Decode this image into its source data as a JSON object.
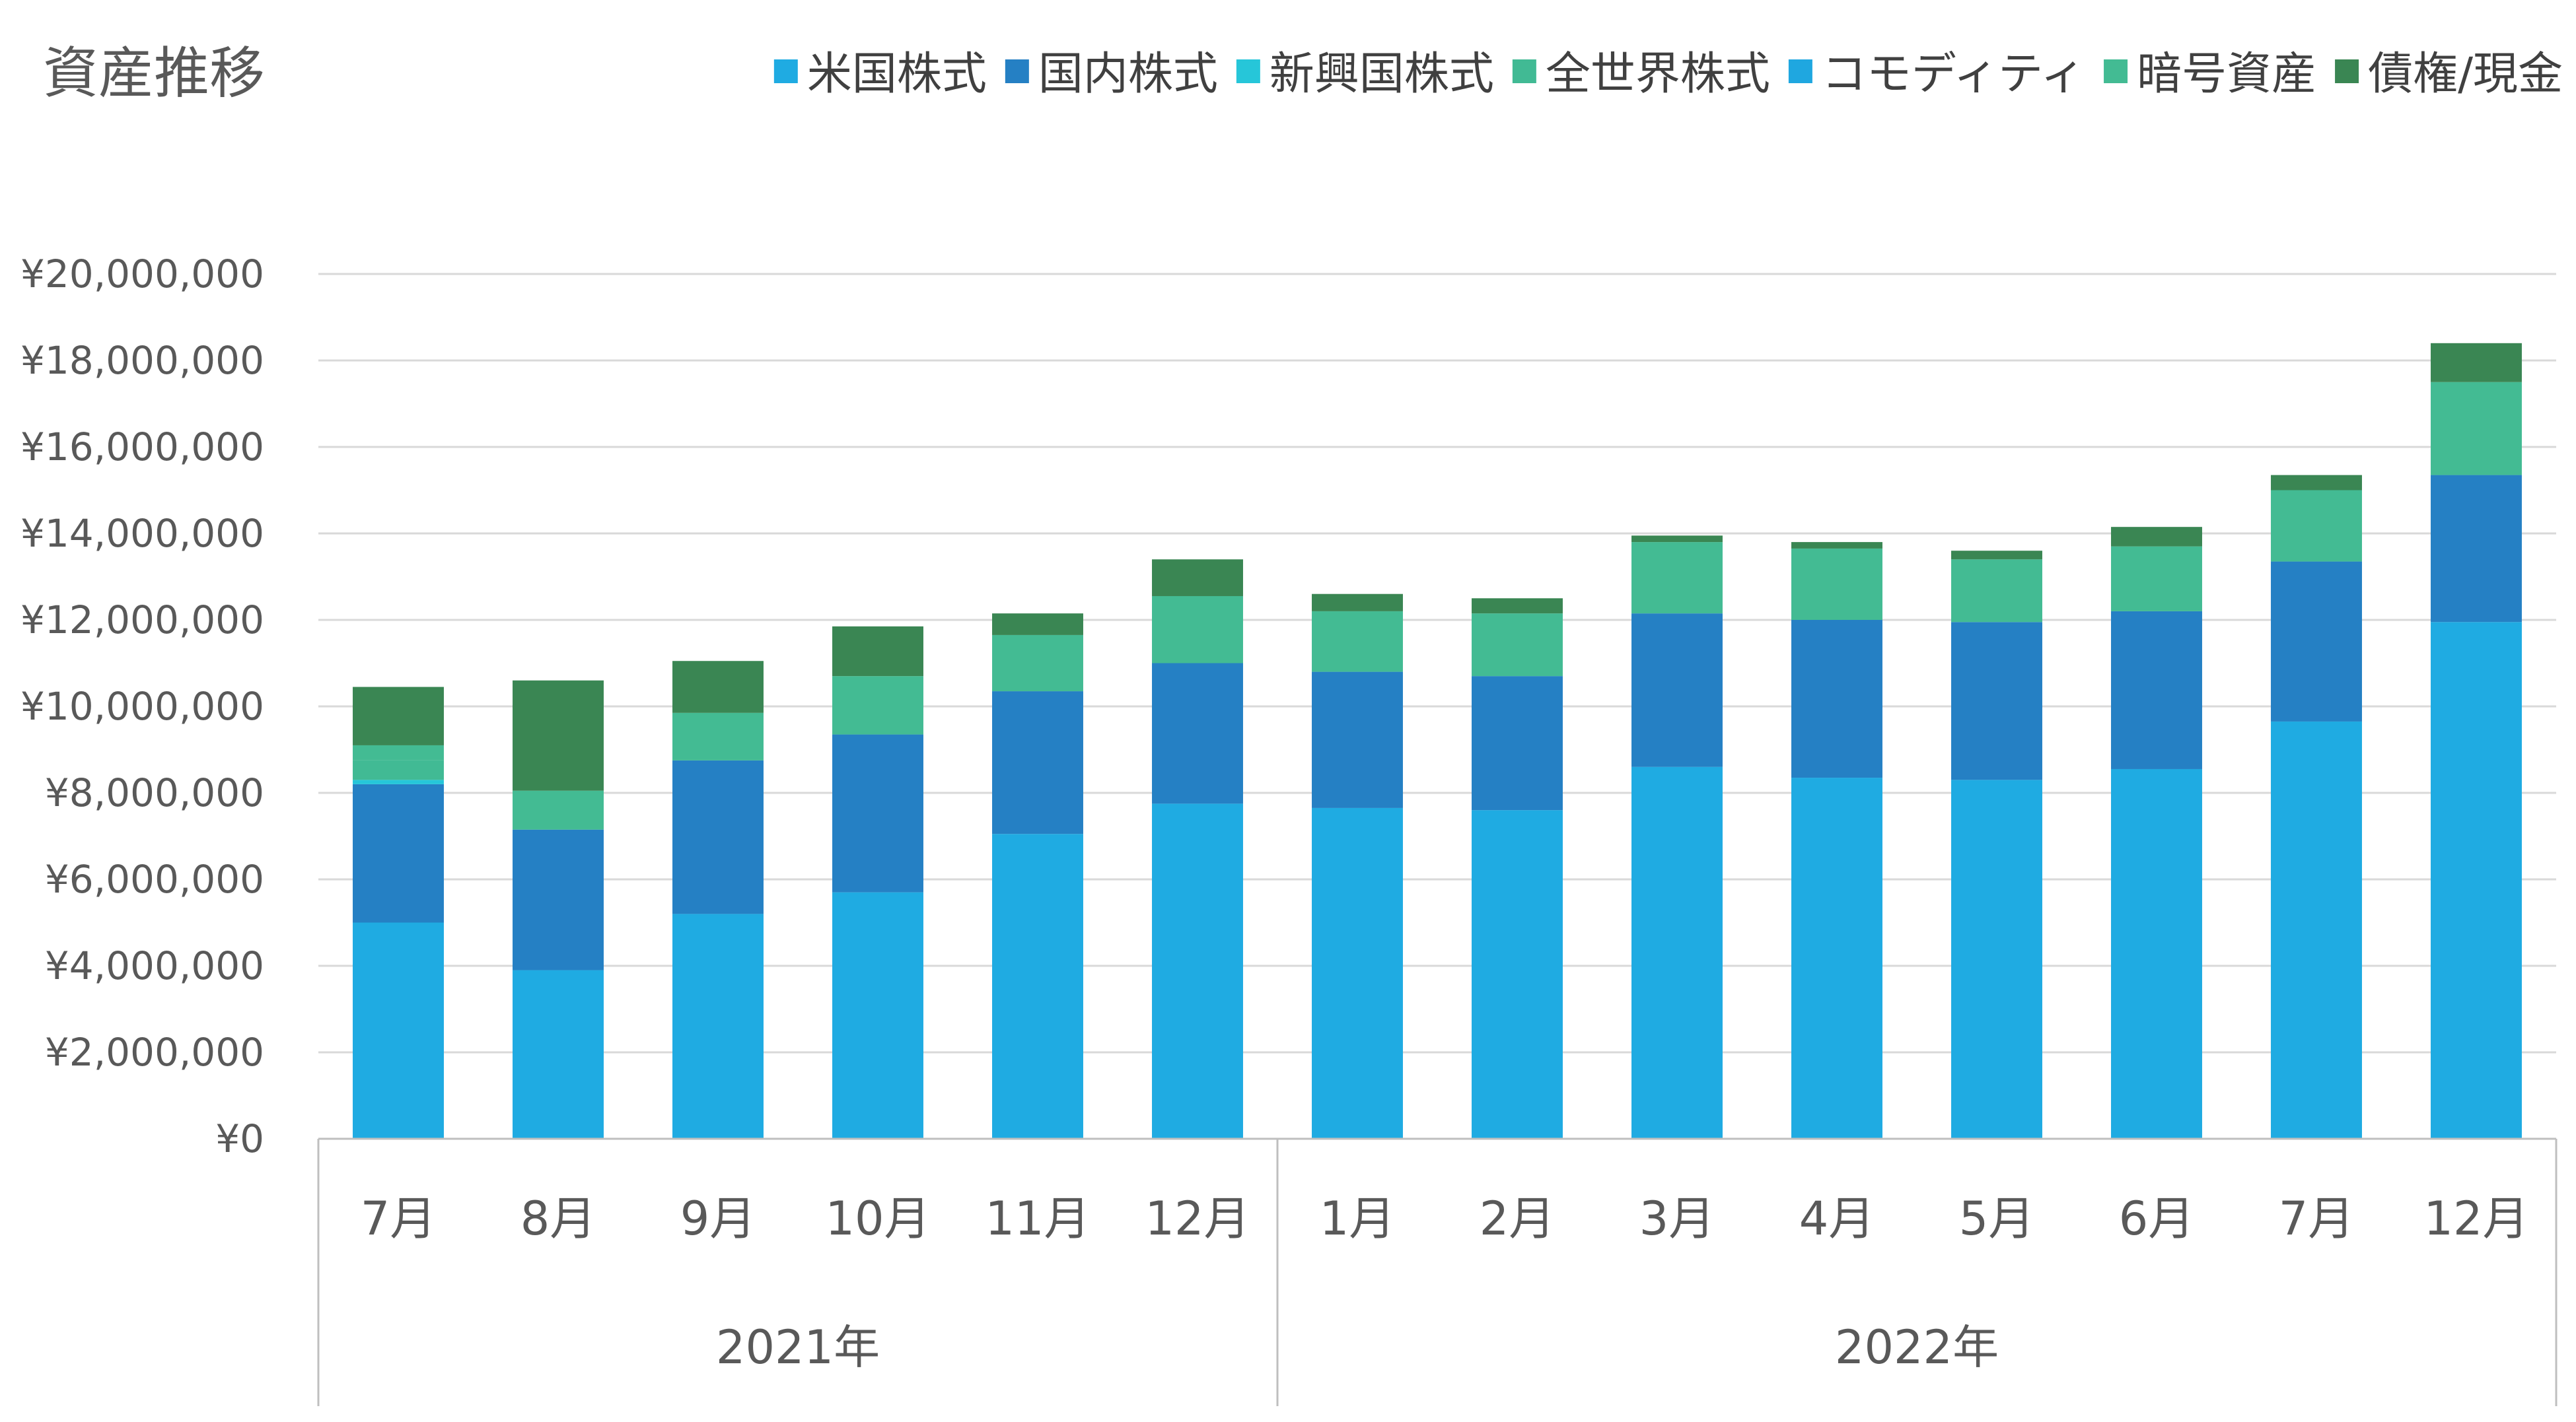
{
  "chart_data": {
    "type": "bar",
    "stacked": true,
    "title": "資産推移",
    "legend_position": "top-right",
    "grid": true,
    "ylim": [
      0,
      20000000
    ],
    "yticks": [
      0,
      2000000,
      4000000,
      6000000,
      8000000,
      10000000,
      12000000,
      14000000,
      16000000,
      18000000,
      20000000
    ],
    "ytick_labels": [
      "¥0",
      "¥2,000,000",
      "¥4,000,000",
      "¥6,000,000",
      "¥8,000,000",
      "¥10,000,000",
      "¥12,000,000",
      "¥14,000,000",
      "¥16,000,000",
      "¥18,000,000",
      "¥20,000,000"
    ],
    "categories": [
      "7月",
      "8月",
      "9月",
      "10月",
      "11月",
      "12月",
      "1月",
      "2月",
      "3月",
      "4月",
      "5月",
      "6月",
      "7月",
      "12月"
    ],
    "groups": [
      {
        "label": "2021年",
        "count": 6
      },
      {
        "label": "2022年",
        "count": 8
      }
    ],
    "series": [
      {
        "name": "米国株式",
        "color": "#1FABE2",
        "values": [
          5000000,
          3900000,
          5200000,
          5700000,
          7050000,
          7750000,
          7650000,
          7600000,
          8600000,
          8350000,
          8300000,
          8550000,
          9650000,
          11950000
        ]
      },
      {
        "name": "国内株式",
        "color": "#2580C4",
        "values": [
          3200000,
          3250000,
          3550000,
          3650000,
          3300000,
          3250000,
          3150000,
          3100000,
          3550000,
          3650000,
          3650000,
          3650000,
          3700000,
          3400000
        ]
      },
      {
        "name": "新興国株式",
        "color": "#26C6D9",
        "values": [
          100000,
          0,
          0,
          0,
          0,
          0,
          0,
          0,
          0,
          0,
          0,
          0,
          0,
          0
        ]
      },
      {
        "name": "全世界株式",
        "color": "#41BA94",
        "values": [
          450000,
          0,
          0,
          0,
          0,
          0,
          0,
          0,
          0,
          0,
          0,
          0,
          0,
          0
        ]
      },
      {
        "name": "コモディティ",
        "color": "#1FA7E0",
        "values": [
          0,
          0,
          0,
          0,
          0,
          0,
          0,
          0,
          0,
          0,
          0,
          0,
          0,
          0
        ]
      },
      {
        "name": "暗号資産",
        "color": "#43BB93",
        "values": [
          350000,
          900000,
          1100000,
          1350000,
          1300000,
          1550000,
          1400000,
          1450000,
          1650000,
          1650000,
          1450000,
          1500000,
          1650000,
          2150000
        ]
      },
      {
        "name": "債権/現金",
        "color": "#3A8653",
        "values": [
          1350000,
          2550000,
          1200000,
          1150000,
          500000,
          850000,
          400000,
          350000,
          150000,
          150000,
          200000,
          450000,
          350000,
          900000
        ]
      }
    ]
  }
}
